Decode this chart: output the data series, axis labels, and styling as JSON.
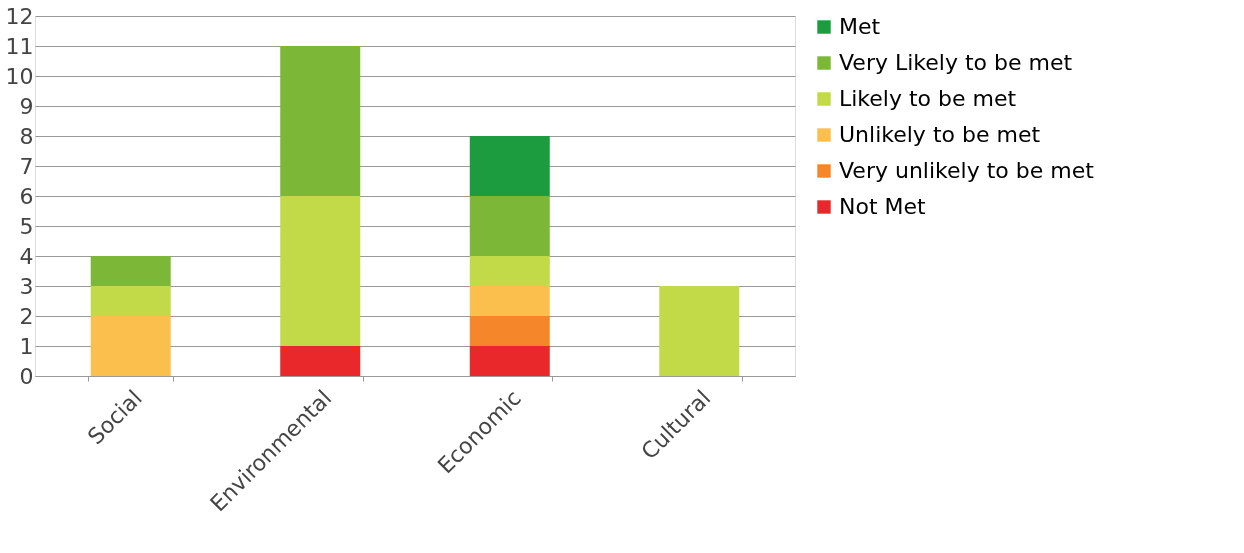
{
  "chart_data": {
    "type": "bar",
    "stacked": true,
    "categories": [
      "Social",
      "Environmental",
      "Economic",
      "Cultural"
    ],
    "series": [
      {
        "name": "Not Met",
        "color": "#e8282a",
        "values": [
          0,
          1,
          1,
          0
        ]
      },
      {
        "name": "Very unlikely to be met",
        "color": "#f5862a",
        "values": [
          0,
          0,
          1,
          0
        ]
      },
      {
        "name": "Unlikely to be met",
        "color": "#fbbf4e",
        "values": [
          2,
          0,
          1,
          0
        ]
      },
      {
        "name": "Likely to be met",
        "color": "#c2d948",
        "values": [
          1,
          5,
          1,
          3
        ]
      },
      {
        "name": "Very Likely to be met",
        "color": "#7cb737",
        "values": [
          1,
          5,
          2,
          0
        ]
      },
      {
        "name": "Met",
        "color": "#1c9c3e",
        "values": [
          0,
          0,
          2,
          0
        ]
      }
    ],
    "ylim": [
      0,
      12
    ],
    "yticks": [
      0,
      1,
      2,
      3,
      4,
      5,
      6,
      7,
      8,
      9,
      10,
      11,
      12
    ],
    "grid": "y",
    "legend": "right"
  }
}
